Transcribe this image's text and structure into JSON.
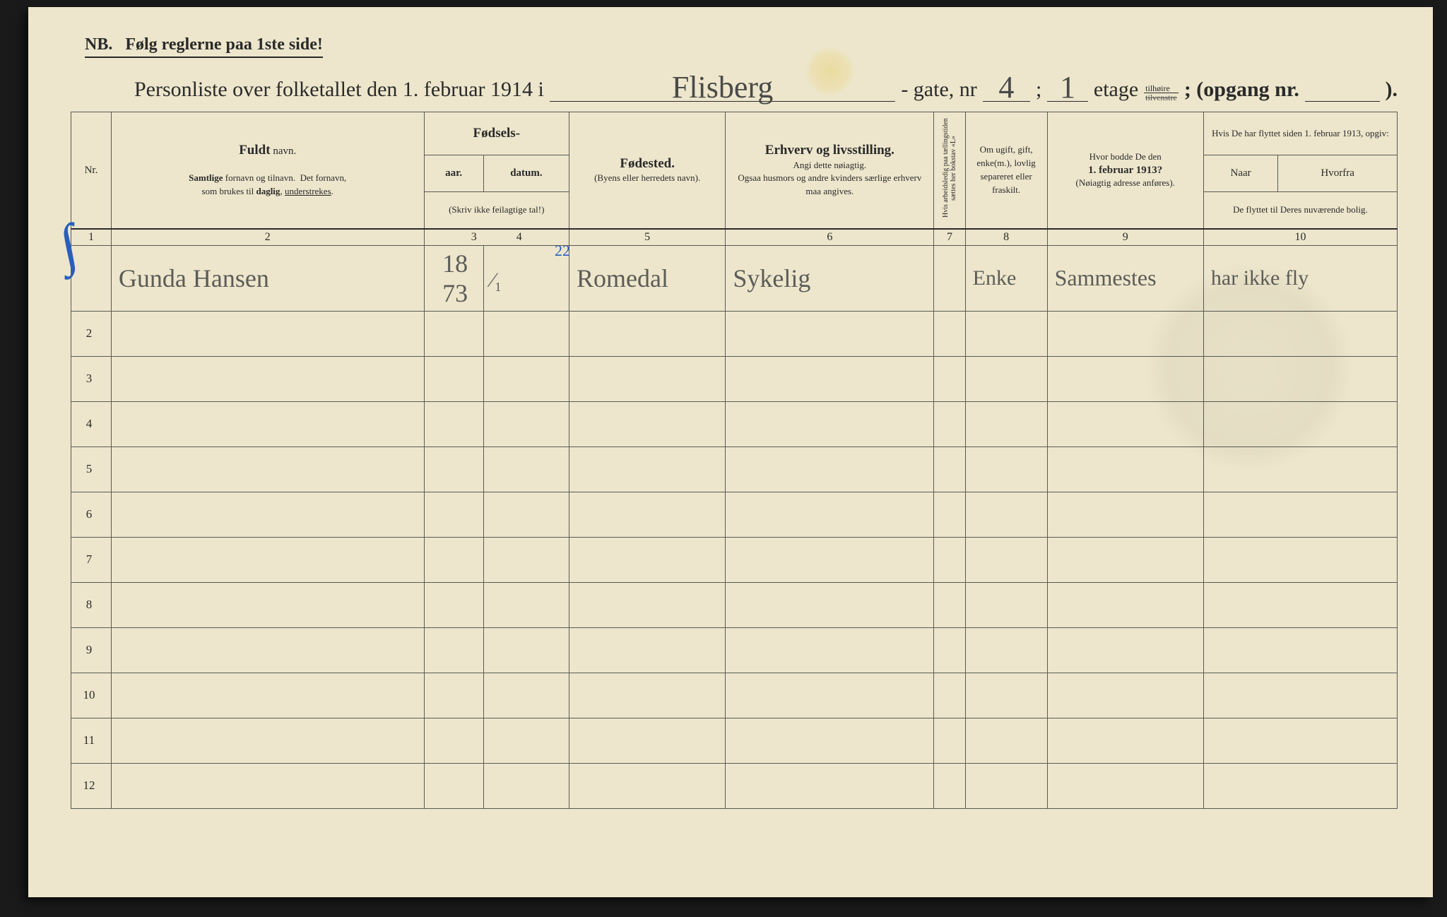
{
  "nb_text": "NB.   Følg reglerne paa 1ste side!",
  "title": {
    "prefix": "Personliste over folketallet den 1. februar 1914 i",
    "street_hand": "Flisberg",
    "gate_label": "- gate, nr",
    "gate_nr_hand": "4",
    "semicolon": ";",
    "etage_hand": "1",
    "etage_label": "etage",
    "frac_top": "tilhøire",
    "frac_bot": "tilvenstre",
    "opgang_label": "; (opgang nr.",
    "close": ")."
  },
  "colnums": [
    "1",
    "2",
    "3",
    "4",
    "5",
    "6",
    "7",
    "8",
    "9",
    "10"
  ],
  "headers": {
    "nr": "Nr.",
    "name_bold": "Fuldt",
    "name_rest": " navn.",
    "name_sub": "Samtlige fornavn og tilnavn.  Det fornavn, som brukes til daglig, understrekes.",
    "birth_group": "Fødsels-",
    "birth_year": "aar.",
    "birth_date": "datum.",
    "birth_note": "(Skriv ikke feilagtige tal!)",
    "place_bold": "Fødested.",
    "place_sub": "(Byens eller herredets navn).",
    "occ_bold": "Erhverv og livsstilling.",
    "occ_sub1": "Angi dette nøiagtig.",
    "occ_sub2": "Ogsaa husmors og andre kvinders særlige erhverv maa angives.",
    "col7_vert": "Hvis arbeidsledig paa tællingstiden sættes her bokstav «L»",
    "col8": "Om ugift, gift, enke(m.), lovlig separeret eller fraskilt.",
    "col9_l1": "Hvor bodde De den",
    "col9_l2": "1. februar 1913?",
    "col9_sub": "(Nøiagtig adresse anføres).",
    "col10_top": "Hvis De har flyttet siden 1. februar 1913, opgiv:",
    "col10_naar": "Naar",
    "col10_hvorfra": "Hvorfra",
    "col10_sub": "De flyttet til Deres nuværende bolig."
  },
  "row1": {
    "nr_blue": "1",
    "name": "Gunda Hansen",
    "year": "18 73",
    "blue22": "22",
    "date": "⁄₁",
    "place": "Romedal",
    "occ": "Sykelig",
    "col7": "",
    "status": "Enke",
    "addr": "Sammestes",
    "moved": "har ikke fly"
  },
  "row_numbers": [
    "2",
    "3",
    "4",
    "5",
    "6",
    "7",
    "8",
    "9",
    "10",
    "11",
    "12"
  ],
  "colors": {
    "paper": "#ede6cc",
    "ink": "#2a2a2a",
    "pencil": "#5c5c58",
    "blue": "#2a5ebc",
    "border": "#5a5a55"
  }
}
